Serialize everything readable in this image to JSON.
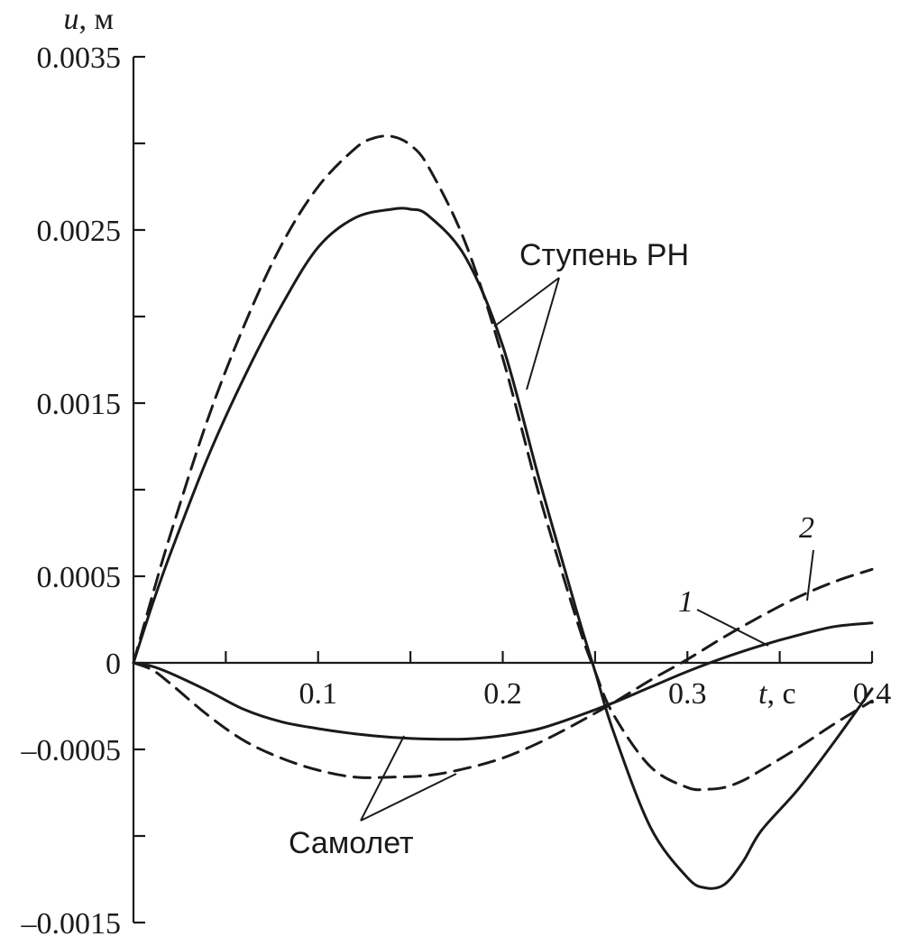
{
  "chart_data": {
    "type": "line",
    "title": "",
    "xlabel": {
      "var": "t",
      "unit": ", с"
    },
    "ylabel": {
      "var": "u",
      "unit": ", м"
    },
    "xlim": [
      0,
      0.4
    ],
    "ylim": [
      -0.0015,
      0.0035
    ],
    "x_ticks": [
      0.05,
      0.1,
      0.15,
      0.2,
      0.25,
      0.3,
      0.35,
      0.4
    ],
    "x_tick_labels": [
      {
        "value": 0.1,
        "label": "0.1"
      },
      {
        "value": 0.2,
        "label": "0.2"
      },
      {
        "value": 0.3,
        "label": "0.3"
      },
      {
        "value": 0.4,
        "label": "0.4"
      }
    ],
    "y_ticks": [
      -0.0015,
      -0.001,
      -0.0005,
      0,
      0.0005,
      0.001,
      0.0015,
      0.002,
      0.0025,
      0.003,
      0.0035
    ],
    "y_tick_labels": [
      {
        "value": 0.0035,
        "label": "0.0035"
      },
      {
        "value": 0.0025,
        "label": "0.0025"
      },
      {
        "value": 0.0015,
        "label": "0.0015"
      },
      {
        "value": 0.0005,
        "label": "0.0005"
      },
      {
        "value": 0,
        "label": "0"
      },
      {
        "value": -0.0005,
        "label": "–0.0005"
      },
      {
        "value": -0.0015,
        "label": "–0.0015"
      }
    ],
    "series": [
      {
        "name": "Ступень РН — кривая 1",
        "style": "solid",
        "x": [
          0,
          0.01,
          0.02,
          0.04,
          0.06,
          0.08,
          0.1,
          0.12,
          0.14,
          0.15,
          0.16,
          0.18,
          0.2,
          0.22,
          0.24,
          0.25,
          0.26,
          0.28,
          0.3,
          0.31,
          0.32,
          0.33,
          0.34,
          0.36,
          0.38,
          0.4
        ],
        "values": [
          0,
          0.00033,
          0.00063,
          0.00118,
          0.00165,
          0.00206,
          0.0024,
          0.00257,
          0.00262,
          0.00262,
          0.00258,
          0.00234,
          0.00183,
          0.00105,
          0.0003,
          -5e-05,
          -0.0004,
          -0.00095,
          -0.00124,
          -0.0013,
          -0.00128,
          -0.00115,
          -0.00097,
          -0.00073,
          -0.00045,
          -0.00015
        ]
      },
      {
        "name": "Ступень РН — кривая 2",
        "style": "dashed",
        "x": [
          0,
          0.01,
          0.02,
          0.04,
          0.06,
          0.08,
          0.1,
          0.12,
          0.13,
          0.14,
          0.15,
          0.16,
          0.18,
          0.2,
          0.22,
          0.24,
          0.25,
          0.26,
          0.28,
          0.3,
          0.31,
          0.32,
          0.33,
          0.34,
          0.36,
          0.38,
          0.4
        ],
        "values": [
          0,
          0.00038,
          0.00074,
          0.0014,
          0.00195,
          0.00241,
          0.00275,
          0.00297,
          0.00303,
          0.00304,
          0.00299,
          0.00286,
          0.00242,
          0.00176,
          0.00096,
          0.00025,
          -5e-05,
          -0.0003,
          -0.0006,
          -0.00072,
          -0.00073,
          -0.00072,
          -0.00068,
          -0.00062,
          -0.00049,
          -0.00035,
          -0.00022
        ]
      },
      {
        "name": "Самолет — кривая 1",
        "style": "solid",
        "x": [
          0,
          0.01,
          0.02,
          0.04,
          0.06,
          0.08,
          0.1,
          0.12,
          0.14,
          0.16,
          0.18,
          0.2,
          0.22,
          0.24,
          0.26,
          0.28,
          0.3,
          0.32,
          0.34,
          0.36,
          0.38,
          0.4
        ],
        "values": [
          0,
          -2e-05,
          -6e-05,
          -0.00016,
          -0.00027,
          -0.00034,
          -0.00038,
          -0.00041,
          -0.00043,
          -0.00044,
          -0.00044,
          -0.00042,
          -0.00038,
          -0.00031,
          -0.00023,
          -0.00014,
          -5e-05,
          3e-05,
          0.0001,
          0.00016,
          0.00021,
          0.00023
        ]
      },
      {
        "name": "Самолет — кривая 2",
        "style": "dashed",
        "x": [
          0,
          0.01,
          0.02,
          0.04,
          0.06,
          0.08,
          0.1,
          0.12,
          0.14,
          0.16,
          0.18,
          0.2,
          0.22,
          0.24,
          0.26,
          0.28,
          0.3,
          0.32,
          0.34,
          0.36,
          0.38,
          0.4
        ],
        "values": [
          0,
          -4e-05,
          -0.00012,
          -0.0003,
          -0.00045,
          -0.00055,
          -0.00062,
          -0.00066,
          -0.00066,
          -0.00065,
          -0.00061,
          -0.00055,
          -0.00046,
          -0.00035,
          -0.00023,
          -0.0001,
          2e-05,
          0.00015,
          0.00027,
          0.00038,
          0.00047,
          0.00054
        ]
      }
    ],
    "annotations": [
      {
        "text": "Ступень РН",
        "points_to": [
          "Ступень РН — кривая 1",
          "Ступень РН — кривая 2"
        ]
      },
      {
        "text": "Самолет",
        "points_to": [
          "Самолет — кривая 1",
          "Самолет — кривая 2"
        ]
      },
      {
        "text": "1",
        "points_to": [
          "Самолет — кривая 1"
        ]
      },
      {
        "text": "2",
        "points_to": [
          "Самолет — кривая 2"
        ]
      }
    ]
  }
}
